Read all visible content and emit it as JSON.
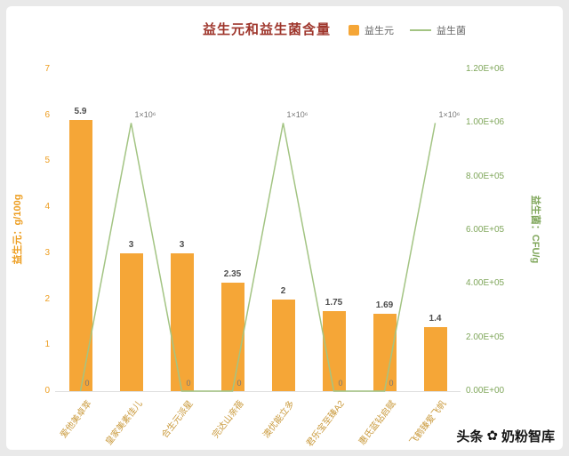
{
  "chart_data": {
    "type": "combo",
    "subtype": "bar+line, dual y-axis",
    "title": "益生元和益生菌含量",
    "title_color": "#9E352B",
    "legend_position": "top-right",
    "grid": false,
    "categories": [
      "爱他美卓萃",
      "皇家美素佳儿",
      "合生元派星",
      "完达山亲蓓",
      "澳优能立多",
      "君乐宝至臻A2",
      "惠氏蓝钻启赋",
      "飞鹤臻爱飞帆"
    ],
    "legend": [
      {
        "name": "益生元",
        "type": "bar",
        "color": "#F5A637"
      },
      {
        "name": "益生菌",
        "type": "line",
        "color": "#A3C483"
      }
    ],
    "series": [
      {
        "name": "益生元",
        "type": "bar",
        "axis": "left",
        "values": [
          5.9,
          3,
          3,
          2.35,
          2,
          1.75,
          1.69,
          1.4
        ],
        "labels": [
          "5.9",
          "3",
          "3",
          "2.35",
          "2",
          "1.75",
          "1.69",
          "1.4"
        ]
      },
      {
        "name": "益生菌",
        "type": "line",
        "axis": "right",
        "values": [
          0,
          1000000,
          0,
          0,
          1000000,
          0,
          0,
          1000000
        ],
        "labels": [
          "0",
          "1×10⁶",
          "0",
          "0",
          "1×10⁶",
          "0",
          "0",
          "1×10⁶"
        ]
      }
    ],
    "left_axis": {
      "title": "益生元：g/100g",
      "min": 0,
      "max": 7,
      "ticks": [
        "0",
        "1",
        "2",
        "3",
        "4",
        "5",
        "6",
        "7"
      ],
      "color": "#ED9D1F"
    },
    "right_axis": {
      "title": "益生菌：CFU/g",
      "min": 0,
      "max": 1200000,
      "ticks": [
        "0.00E+00",
        "2.00E+05",
        "4.00E+05",
        "6.00E+05",
        "8.00E+05",
        "1.00E+06",
        "1.20E+06"
      ],
      "color": "#7FA65A"
    }
  },
  "watermark": {
    "prefix": "头条",
    "brand": "奶粉智库",
    "logo_glyph": "✿"
  }
}
